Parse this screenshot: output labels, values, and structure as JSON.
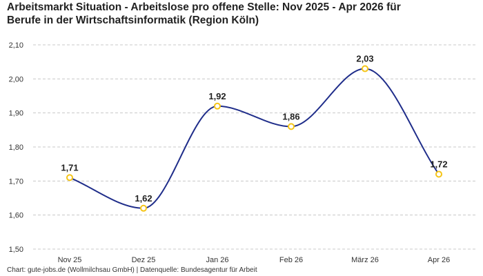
{
  "title_line1": "Arbeitsmarkt Situation - Arbeitslose pro offene Stelle: Nov 2025 - Apr 2026 für",
  "title_line2": "Berufe in der Wirtschaftsinformatik (Region Köln)",
  "footer": "Chart: gute-jobs.de (Wollmilchsau GmbH) | Datenquelle: Bundesagentur für Arbeit",
  "colors": {
    "line": "#1f2d8a",
    "marker_stroke": "#f5c518",
    "marker_fill": "#ffffff",
    "grid": "#c8c8c8"
  },
  "chart_data": {
    "type": "line",
    "categories": [
      "Nov 25",
      "Dez 25",
      "Jan 26",
      "Feb 26",
      "März 26",
      "Apr 26"
    ],
    "values": [
      1.71,
      1.62,
      1.92,
      1.86,
      2.03,
      1.72
    ],
    "data_labels": [
      "1,71",
      "1,62",
      "1,92",
      "1,86",
      "2,03",
      "1,72"
    ],
    "y_ticks": [
      "1,50",
      "1,60",
      "1,70",
      "1,80",
      "1,90",
      "2,00",
      "2,10"
    ],
    "y_tick_values": [
      1.5,
      1.6,
      1.7,
      1.8,
      1.9,
      2.0,
      2.1
    ],
    "ylim": [
      1.5,
      2.1
    ],
    "grid": "horizontal dashed",
    "smooth": true,
    "legend": "none"
  }
}
